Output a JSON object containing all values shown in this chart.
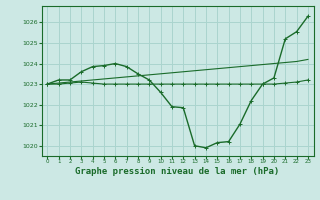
{
  "background_color": "#cce8e4",
  "grid_color": "#aad4ce",
  "line_color": "#1a6b2a",
  "xlabel": "Graphe pression niveau de la mer (hPa)",
  "xlabel_fontsize": 6.5,
  "xlim": [
    -0.5,
    23.5
  ],
  "ylim": [
    1019.5,
    1026.8
  ],
  "yticks": [
    1020,
    1021,
    1022,
    1023,
    1024,
    1025,
    1026
  ],
  "xticks": [
    0,
    1,
    2,
    3,
    4,
    5,
    6,
    7,
    8,
    9,
    10,
    11,
    12,
    13,
    14,
    15,
    16,
    17,
    18,
    19,
    20,
    21,
    22,
    23
  ],
  "line_flat_x": [
    0,
    1,
    2,
    3,
    4,
    5,
    6,
    7,
    8,
    9,
    10,
    11,
    12,
    13,
    14,
    15,
    16,
    17,
    18,
    19,
    20,
    21,
    22,
    23
  ],
  "line_flat_y": [
    1023.0,
    1023.0,
    1023.05,
    1023.1,
    1023.05,
    1023.0,
    1023.0,
    1023.0,
    1023.0,
    1023.0,
    1023.0,
    1023.0,
    1023.0,
    1023.0,
    1023.0,
    1023.0,
    1023.0,
    1023.0,
    1023.0,
    1023.0,
    1023.0,
    1023.05,
    1023.1,
    1023.2
  ],
  "line_curve_x": [
    0,
    1,
    2,
    3,
    4,
    5,
    6,
    7,
    8,
    9,
    10,
    11,
    12,
    13,
    14,
    15,
    16,
    17,
    18,
    19,
    20,
    21,
    22,
    23
  ],
  "line_curve_y": [
    1023.0,
    1023.2,
    1023.2,
    1023.6,
    1023.85,
    1023.9,
    1024.0,
    1023.85,
    1023.5,
    1023.2,
    1022.6,
    1021.9,
    1021.85,
    1020.0,
    1019.9,
    1020.15,
    1020.2,
    1021.05,
    1022.2,
    1023.0,
    1023.3,
    1025.2,
    1025.55,
    1026.3
  ],
  "line_diag_x": [
    0,
    1,
    2,
    3,
    4,
    5,
    6,
    7,
    8,
    9,
    10,
    11,
    12,
    13,
    14,
    15,
    16,
    17,
    18,
    19,
    20,
    21,
    22,
    23
  ],
  "line_diag_y": [
    1023.0,
    1023.05,
    1023.1,
    1023.15,
    1023.2,
    1023.25,
    1023.3,
    1023.35,
    1023.4,
    1023.45,
    1023.5,
    1023.55,
    1023.6,
    1023.65,
    1023.7,
    1023.75,
    1023.8,
    1023.85,
    1023.9,
    1023.95,
    1024.0,
    1024.05,
    1024.1,
    1024.2
  ]
}
